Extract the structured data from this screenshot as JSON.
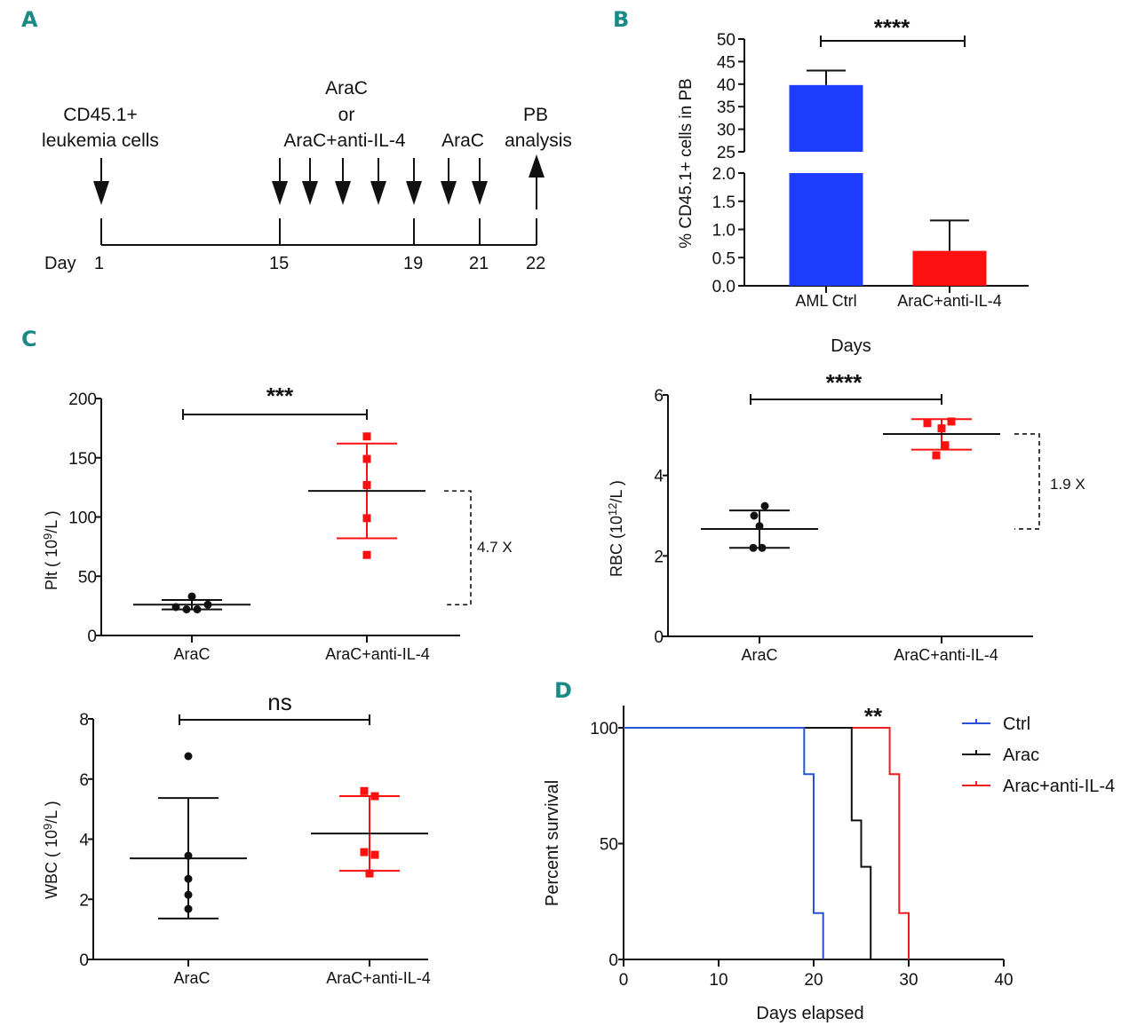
{
  "panels": {
    "A": "A",
    "B": "B",
    "C": "C",
    "D": "D"
  },
  "timeline": {
    "day_label": "Day",
    "days": [
      "1",
      "15",
      "19",
      "21",
      "22"
    ],
    "label_leukemia": [
      "CD45.1+",
      "leukemia cells"
    ],
    "label_treatment": [
      "AraC",
      "or",
      "AraC+anti-IL-4"
    ],
    "label_arac": "AraC",
    "label_pb": [
      "PB",
      "analysis"
    ]
  },
  "colors": {
    "blue": "#1f3dff",
    "red": "#ff1010",
    "black": "#111111",
    "panel_letter": "#1a8a86",
    "ctrl_line": "#2a52d6",
    "red_line": "#ee1c1c"
  },
  "chart_data": [
    {
      "id": "B",
      "type": "bar",
      "title": "",
      "ylabel": "% CD45.1+ cells in PB",
      "xlabel": "Days",
      "categories": [
        "AML Ctrl",
        "AraC+anti-IL-4"
      ],
      "values": [
        39.8,
        0.62
      ],
      "error_upper": [
        43.0,
        1.16
      ],
      "bar_colors": [
        "#1f3dff",
        "#ff1010"
      ],
      "axis_break": {
        "lower": [
          0,
          2.0
        ],
        "upper": [
          25,
          50
        ]
      },
      "yticks_lower": [
        "0.0",
        "0.5",
        "1.0",
        "1.5",
        "2.0"
      ],
      "yticks_upper": [
        "25",
        "30",
        "35",
        "40",
        "45",
        "50"
      ],
      "significance": "****"
    },
    {
      "id": "C-Plt",
      "type": "scatter",
      "ylabel_main": "Plt ( 10",
      "ylabel_sup": "9",
      "ylabel_tail": "/L )",
      "categories": [
        "AraC",
        "AraC+anti-IL-4"
      ],
      "ylim": [
        0,
        200
      ],
      "yticks": [
        "0",
        "50",
        "100",
        "150",
        "200"
      ],
      "series": [
        {
          "name": "AraC",
          "values": [
            24,
            22,
            22,
            33,
            26
          ],
          "mean": 26,
          "sd_upper": 30,
          "sd_lower": 22
        },
        {
          "name": "AraC+anti-IL-4",
          "values": [
            168,
            149,
            127,
            99,
            68
          ],
          "mean": 122,
          "sd_upper": 162,
          "sd_lower": 82
        }
      ],
      "significance": "***",
      "fold_change": "4.7 X"
    },
    {
      "id": "C-RBC",
      "type": "scatter",
      "ylabel_main": "RBC (10",
      "ylabel_sup": "12",
      "ylabel_tail": "/L )",
      "categories": [
        "AraC",
        "AraC+anti-IL-4"
      ],
      "ylim": [
        0,
        6
      ],
      "yticks": [
        "0",
        "2",
        "4",
        "6"
      ],
      "series": [
        {
          "name": "AraC",
          "values": [
            3.24,
            3.0,
            2.74,
            2.2,
            2.2
          ],
          "mean": 2.67,
          "sd_upper": 3.13,
          "sd_lower": 2.2
        },
        {
          "name": "AraC+anti-IL-4",
          "values": [
            5.3,
            5.17,
            4.75,
            4.5,
            5.34
          ],
          "mean": 5.03,
          "sd_upper": 5.4,
          "sd_lower": 4.64
        }
      ],
      "significance": "****",
      "fold_change": "1.9 X"
    },
    {
      "id": "C-WBC",
      "type": "scatter",
      "ylabel_main": "WBC ( 10",
      "ylabel_sup": "9",
      "ylabel_tail": "/L )",
      "categories": [
        "AraC",
        "AraC+anti-IL-4"
      ],
      "ylim": [
        0,
        8
      ],
      "yticks": [
        "0",
        "2",
        "4",
        "6",
        "8"
      ],
      "series": [
        {
          "name": "AraC",
          "values": [
            6.76,
            3.45,
            2.68,
            2.15,
            1.68
          ],
          "mean": 3.36,
          "sd_upper": 5.37,
          "sd_lower": 1.36
        },
        {
          "name": "AraC+anti-IL-4",
          "values": [
            5.6,
            5.43,
            3.57,
            3.48,
            2.86
          ],
          "mean": 4.19,
          "sd_upper": 5.43,
          "sd_lower": 2.95
        }
      ],
      "significance": "ns"
    },
    {
      "id": "D",
      "type": "line",
      "subtype": "kaplan-meier",
      "xlabel": "Days elapsed",
      "ylabel": "Percent survival",
      "xlim": [
        0,
        40
      ],
      "ylim": [
        0,
        100
      ],
      "xticks": [
        "0",
        "10",
        "20",
        "30",
        "40"
      ],
      "yticks": [
        "0",
        "50",
        "100"
      ],
      "legend_position": "top-right",
      "significance": "**",
      "series": [
        {
          "name": "Ctrl",
          "color": "#2a52d6",
          "steps": [
            [
              0,
              100
            ],
            [
              19,
              80
            ],
            [
              20,
              20
            ],
            [
              21,
              0
            ]
          ]
        },
        {
          "name": "Arac",
          "color": "#111111",
          "steps": [
            [
              0,
              100
            ],
            [
              24,
              60
            ],
            [
              25,
              40
            ],
            [
              26,
              0
            ]
          ]
        },
        {
          "name": "Arac+anti-IL-4",
          "color": "#ee1c1c",
          "steps": [
            [
              0,
              100
            ],
            [
              28,
              80
            ],
            [
              29,
              20
            ],
            [
              30,
              0
            ]
          ]
        }
      ]
    }
  ]
}
